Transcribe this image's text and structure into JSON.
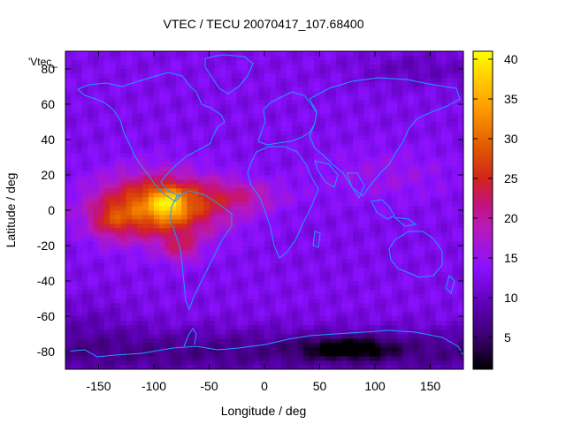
{
  "chart_data": {
    "type": "heatmap",
    "title": "VTEC / TECU 20070417_107.68400",
    "xlabel": "Longitude / deg",
    "ylabel": "Latitude / deg",
    "key_label": "'Vtec_",
    "xlim": [
      -180,
      180
    ],
    "ylim": [
      -90,
      90
    ],
    "x_ticks": [
      -150,
      -100,
      -50,
      0,
      50,
      100,
      150
    ],
    "y_ticks": [
      -80,
      -60,
      -40,
      -20,
      0,
      20,
      40,
      60,
      80
    ],
    "colorbar": {
      "range": [
        1,
        41
      ],
      "ticks": [
        5,
        10,
        15,
        20,
        25,
        30,
        35,
        40
      ],
      "colormap": [
        "#000000",
        "#5c00b3",
        "#8a11ff",
        "#c4127c",
        "#d93000",
        "#ff9a00",
        "#ffff00"
      ]
    },
    "grid_resolution": {
      "dlon": 5,
      "dlat": 2.5
    },
    "features": [
      {
        "kind": "equatorial_anomaly_peak",
        "lon": -87,
        "lat": 4,
        "value": 41
      },
      {
        "kind": "secondary_peak",
        "lon": -140,
        "lat": -6,
        "value": 29
      },
      {
        "kind": "southern_crest",
        "lon": -75,
        "lat": -22,
        "value": 28
      },
      {
        "kind": "background_min",
        "lon": 75,
        "lat": -78,
        "value": 1
      }
    ],
    "overlay": "coastlines"
  },
  "colors": {
    "coastline": "#1e9bff",
    "axis": "#000000"
  }
}
